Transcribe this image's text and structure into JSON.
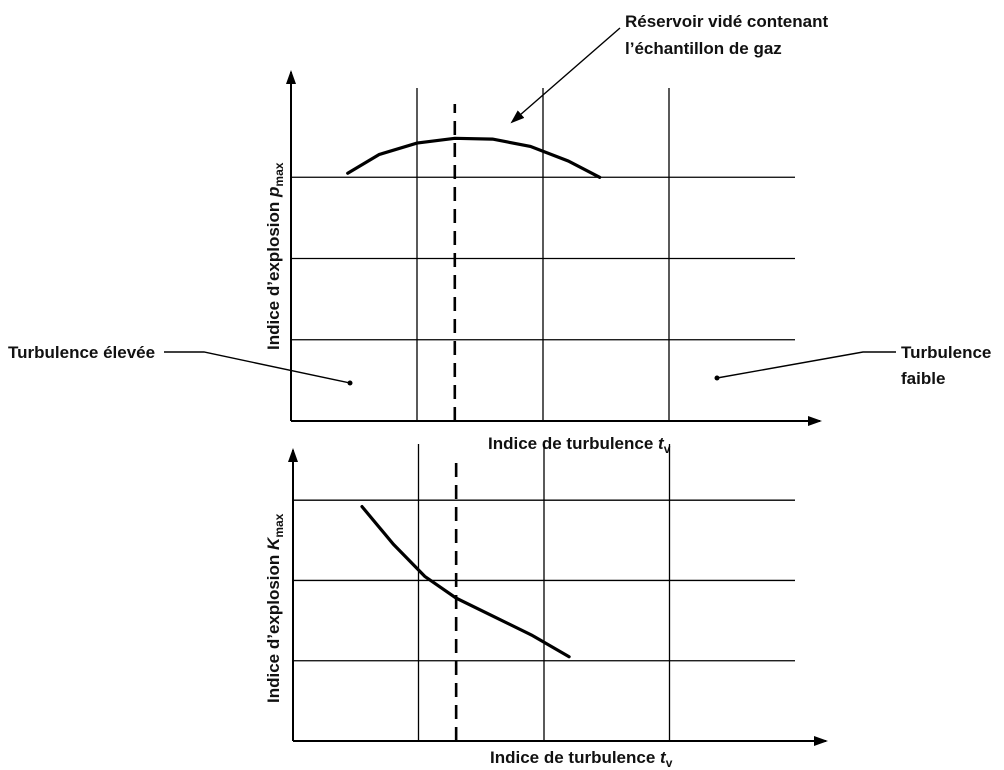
{
  "chart_data": [
    {
      "type": "line",
      "xlabel": "Indice de turbulence",
      "xlabel_var": "t",
      "xlabel_sub": "v",
      "ylabel": "Indice d’explosion",
      "ylabel_var": "p",
      "ylabel_sub": "max",
      "x_ticks": [
        1,
        2,
        3
      ],
      "y_ticks": [
        1,
        2,
        3
      ],
      "xlim": [
        0,
        4
      ],
      "ylim": [
        0,
        4
      ],
      "grid": true,
      "marker_x": 1.3,
      "series": [
        {
          "x": [
            0.45,
            0.7,
            1.0,
            1.3,
            1.6,
            1.9,
            2.2,
            2.45
          ],
          "y": [
            3.05,
            3.28,
            3.42,
            3.48,
            3.47,
            3.38,
            3.2,
            3.0
          ]
        }
      ]
    },
    {
      "type": "line",
      "xlabel": "Indice de turbulence",
      "xlabel_var": "t",
      "xlabel_sub": "v",
      "ylabel": "Indice d’explosion",
      "ylabel_var": "K",
      "ylabel_sub": "max",
      "x_ticks": [
        1,
        2,
        3
      ],
      "y_ticks": [
        1,
        2,
        3
      ],
      "xlim": [
        0,
        4
      ],
      "ylim": [
        0,
        3.6
      ],
      "grid": true,
      "marker_x": 1.3,
      "series": [
        {
          "x": [
            0.55,
            0.8,
            1.05,
            1.3,
            1.6,
            1.9,
            2.2
          ],
          "y": [
            2.92,
            2.45,
            2.05,
            1.78,
            1.55,
            1.32,
            1.05
          ]
        }
      ]
    }
  ],
  "annotations": {
    "reservoir_line1": "Réservoir vidé contenant",
    "reservoir_line2": "l’échantillon de gaz",
    "high_turbulence": "Turbulence élevée",
    "low_turbulence_line1": "Turbulence",
    "low_turbulence_line2": "faible"
  }
}
